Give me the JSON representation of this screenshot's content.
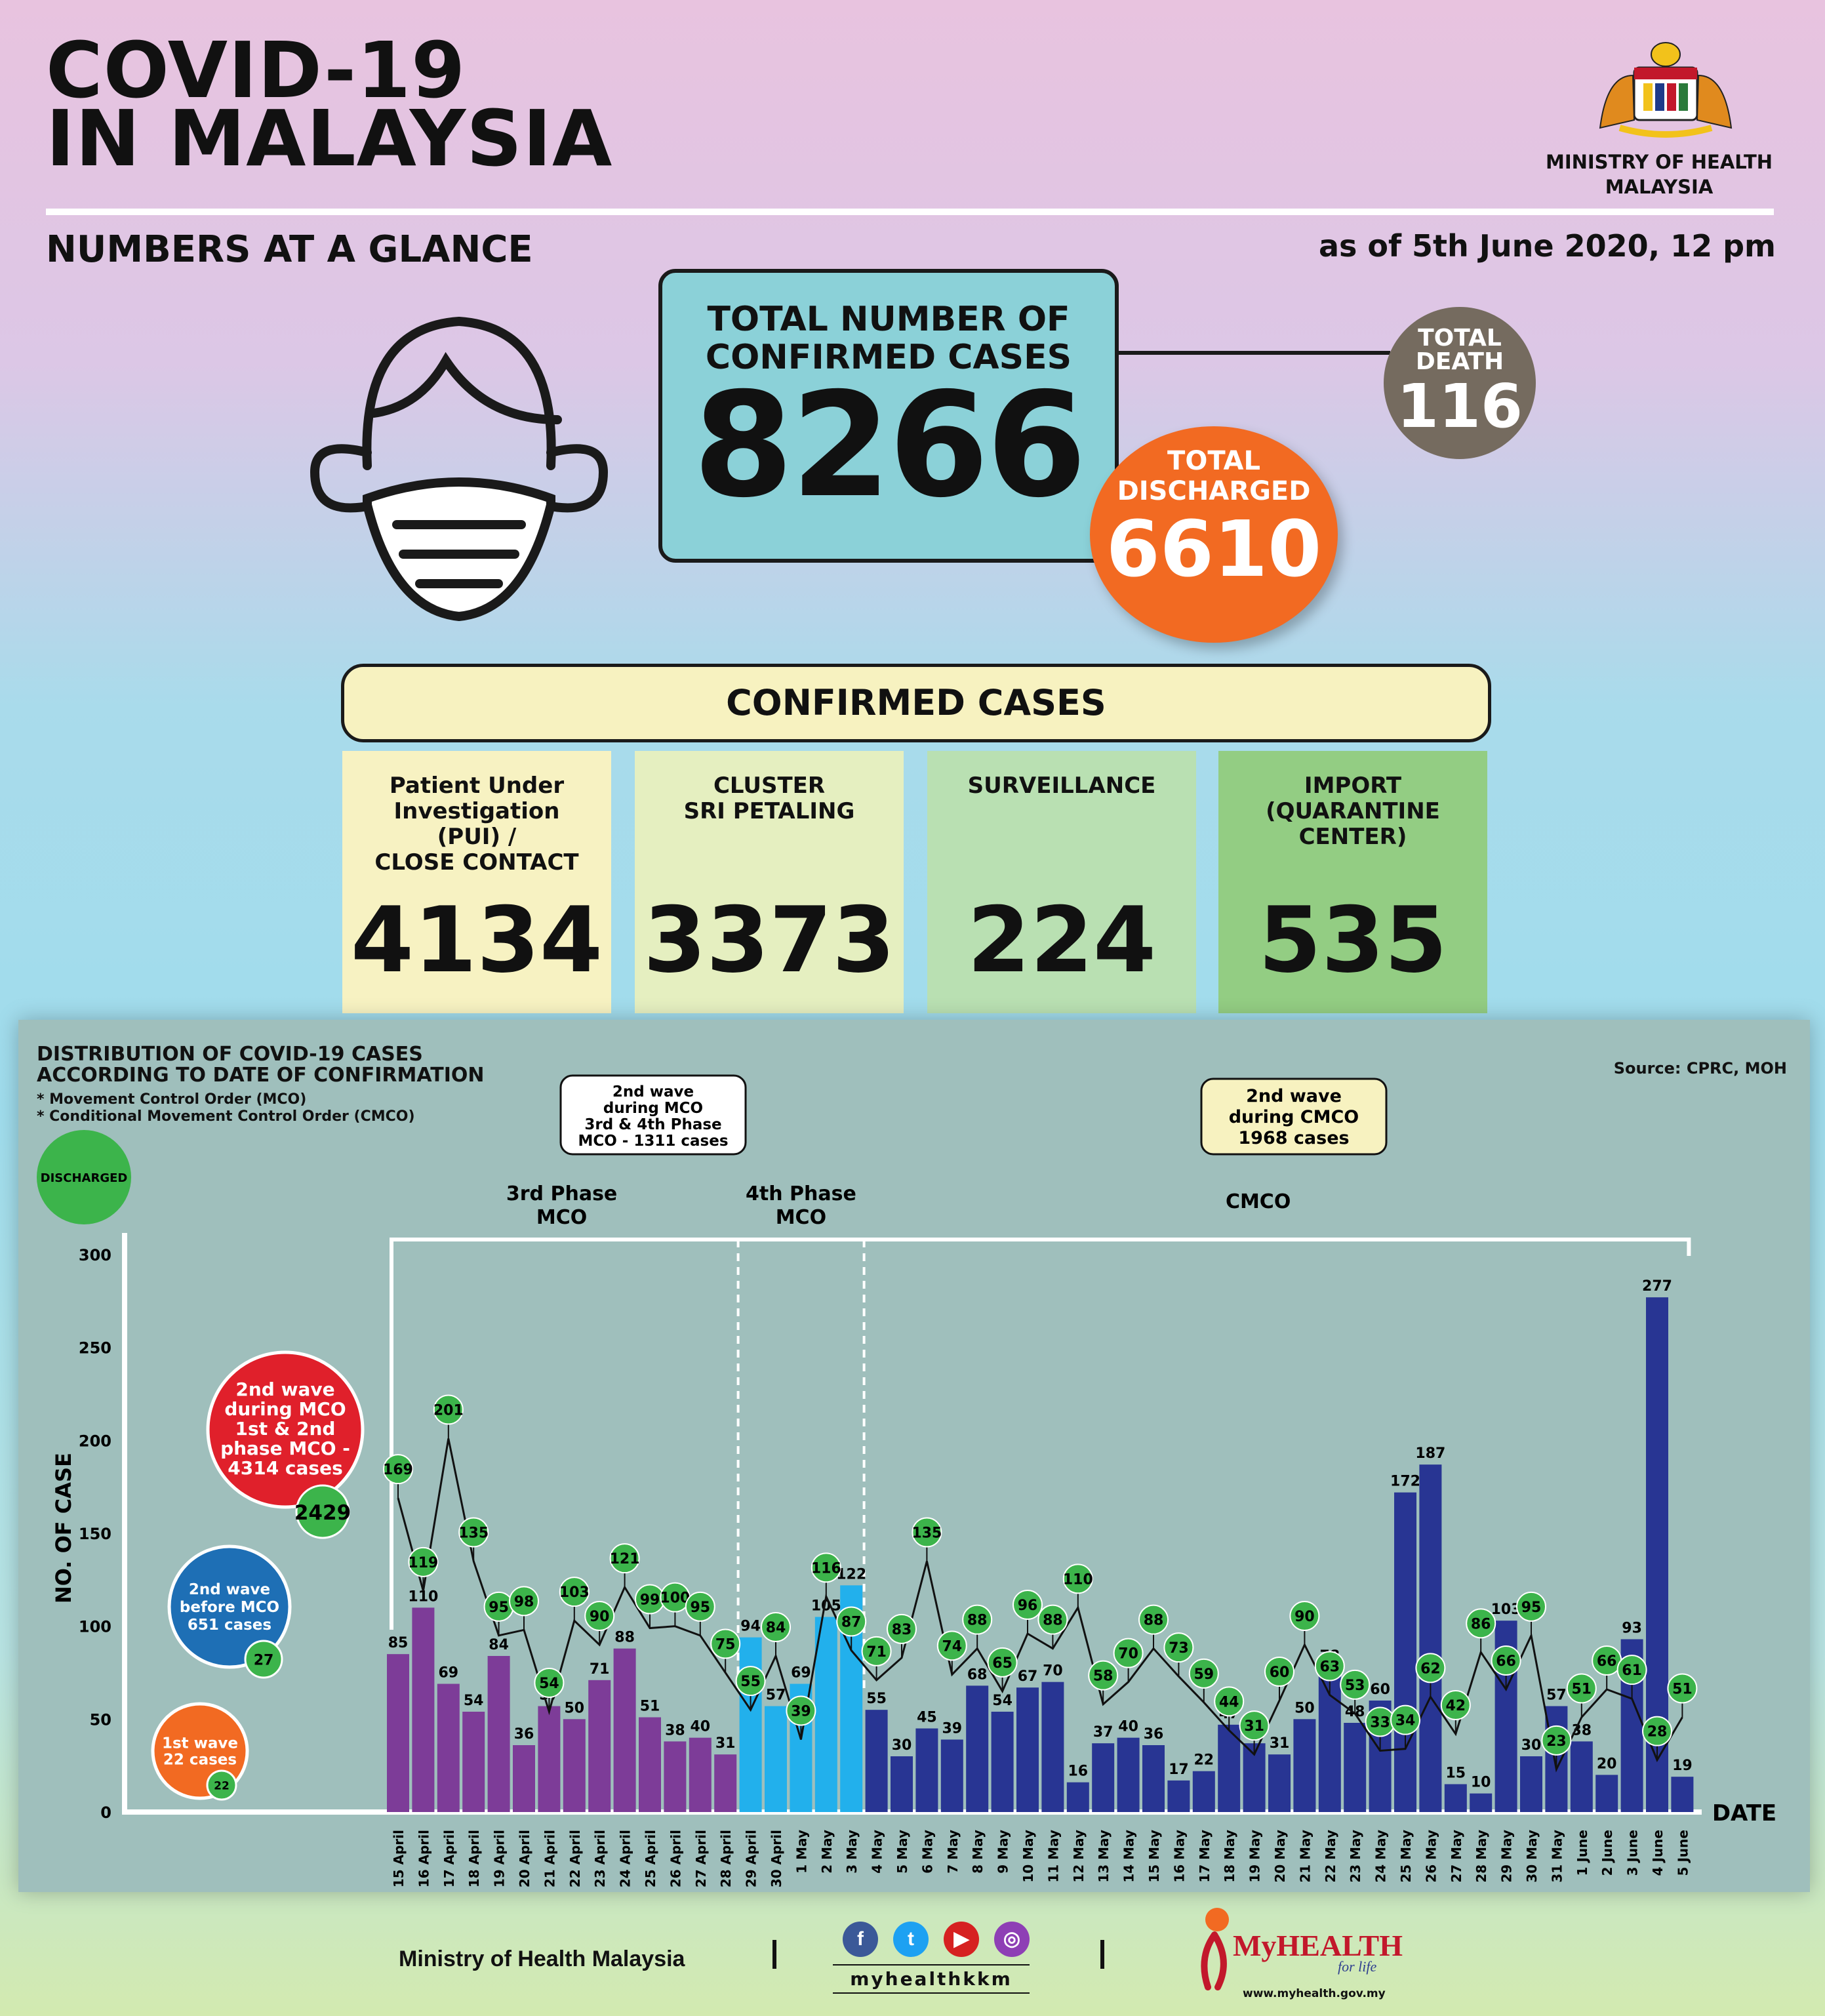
{
  "header": {
    "title": "COVID-19\nIN MALAYSIA",
    "subtitle": "NUMBERS AT A GLANCE",
    "as_of": "as of 5th June 2020, 12 pm",
    "ministry": "MINISTRY OF HEALTH\nMALAYSIA"
  },
  "summary": {
    "total_label": "TOTAL NUMBER OF\nCONFIRMED CASES",
    "total_value": "8266",
    "death_label": "TOTAL\nDEATH",
    "death_value": "116",
    "discharged_label": "TOTAL\nDISCHARGED",
    "discharged_value": "6610"
  },
  "confirmed": {
    "banner": "CONFIRMED CASES",
    "categories": [
      {
        "label": "Patient Under\nInvestigation\n(PUI) /\nCLOSE CONTACT",
        "value": "4134",
        "color": "#f7f2c2"
      },
      {
        "label": "CLUSTER\nSRI PETALING",
        "value": "3373",
        "color": "#e5efc0"
      },
      {
        "label": "SURVEILLANCE",
        "value": "224",
        "color": "#b9e0b2"
      },
      {
        "label": "IMPORT\n(QUARANTINE\nCENTER)",
        "value": "535",
        "color": "#93cd83"
      }
    ]
  },
  "chart_panel": {
    "title": "DISTRIBUTION OF COVID-19 CASES\nACCORDING TO DATE OF CONFIRMATION",
    "notes": "* Movement Control Order (MCO)\n* Conditional Movement Control Order (CMCO)",
    "source": "Source: CPRC, MOH"
  },
  "chart_data": {
    "type": "bar",
    "ylabel": "NO. OF CASE",
    "xlabel": "DATE",
    "ylim": [
      0,
      300
    ],
    "yticks": [
      0,
      50,
      100,
      150,
      200,
      250,
      300
    ],
    "categories": [
      "15 April",
      "16 April",
      "17 April",
      "18 April",
      "19 April",
      "20 April",
      "21 April",
      "22 April",
      "23 April",
      "24 April",
      "25 April",
      "26 April",
      "27 April",
      "28 April",
      "29 April",
      "30 April",
      "1 May",
      "2 May",
      "3 May",
      "4 May",
      "5 May",
      "6 May",
      "7 May",
      "8 May",
      "9 May",
      "10 May",
      "11 May",
      "12 May",
      "13 May",
      "14 May",
      "15 May",
      "16 May",
      "17 May",
      "18 May",
      "19 May",
      "20 May",
      "21 May",
      "22 May",
      "23 May",
      "24 May",
      "25 May",
      "26 May",
      "27 May",
      "28 May",
      "29 May",
      "30 May",
      "31 May",
      "1 June",
      "2 June",
      "3 June",
      "4 June",
      "5 June"
    ],
    "series": [
      {
        "values": [
          85,
          110,
          69,
          54,
          84,
          36,
          57,
          50,
          71,
          88,
          51,
          38,
          40,
          31,
          94,
          57,
          69,
          105,
          122,
          55,
          30,
          45,
          39,
          68,
          54,
          67,
          70,
          16,
          37,
          40,
          36,
          17,
          22,
          47,
          37,
          31,
          50,
          78,
          48,
          60,
          172,
          187,
          15,
          10,
          103,
          30,
          57,
          38,
          20,
          93,
          277,
          19
        ]
      },
      {
        "name": "DISCHARGED",
        "values": [
          169,
          119,
          201,
          135,
          95,
          98,
          54,
          103,
          90,
          121,
          99,
          100,
          95,
          75,
          55,
          84,
          39,
          116,
          87,
          71,
          83,
          135,
          74,
          88,
          65,
          96,
          88,
          110,
          58,
          70,
          88,
          73,
          59,
          44,
          31,
          60,
          90,
          63,
          53,
          33,
          34,
          62,
          42,
          86,
          66,
          95,
          23,
          51,
          66,
          61,
          28,
          51
        ]
      }
    ],
    "phase_colors": {
      "mco3": "#7d3c98",
      "mco4": "#22b0ec",
      "cmco": "#283593",
      "discharged": "#3cb44b"
    },
    "phases": [
      {
        "label": "3rd Phase\nMCO",
        "start": "15 April",
        "end": "28 April"
      },
      {
        "label": "4th Phase\nMCO",
        "start": "29 April",
        "end": "3 May"
      },
      {
        "label": "CMCO",
        "start": "4 May",
        "end": "5 June"
      }
    ],
    "callouts": [
      {
        "text": "2nd wave\nduring MCO\n3rd & 4th Phase\nMCO - 1311 cases"
      },
      {
        "text": "2nd wave\nduring CMCO\n1968 cases"
      }
    ],
    "discharged_legend": "DISCHARGED",
    "waves": [
      {
        "text": "2nd wave\nduring MCO\n1st & 2nd\nphase MCO -\n4314 cases",
        "discharged": "2429",
        "color": "#e0202b"
      },
      {
        "text": "2nd wave\nbefore MCO\n651 cases",
        "discharged": "27",
        "color": "#1e6fb5"
      },
      {
        "text": "1st wave\n22 cases",
        "discharged": "22",
        "color": "#f26a22"
      }
    ]
  },
  "footer": {
    "ministry": "Ministry of Health Malaysia",
    "handle": "myhealthkkm",
    "social_icons": [
      "facebook-icon",
      "twitter-icon",
      "youtube-icon",
      "instagram-icon"
    ],
    "brand": "MyHEALTH",
    "brand_tag": "for life",
    "url": "www.myhealth.gov.my"
  }
}
